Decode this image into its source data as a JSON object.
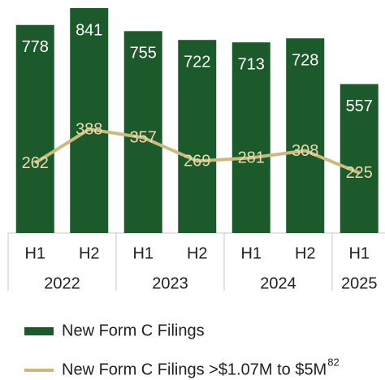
{
  "chart_data": {
    "type": "bar_line",
    "categories": [
      "H1",
      "H2",
      "H1",
      "H2",
      "H1",
      "H2",
      "H1"
    ],
    "groups": [
      {
        "label": "2022",
        "count": 2
      },
      {
        "label": "2023",
        "count": 2
      },
      {
        "label": "2024",
        "count": 2
      },
      {
        "label": "2025",
        "count": 1
      }
    ],
    "series": [
      {
        "name": "New Form C Filings",
        "type": "bar",
        "color": "#1c5a2c",
        "label_color": "#ffffff",
        "values": [
          778,
          841,
          755,
          722,
          713,
          728,
          557
        ]
      },
      {
        "name": "New Form C Filings >$1.07M to $5M",
        "footnote": "82",
        "type": "line",
        "color": "#c9bb7e",
        "label_color": "#e6dcae",
        "values": [
          262,
          388,
          357,
          269,
          281,
          308,
          225
        ]
      }
    ]
  }
}
